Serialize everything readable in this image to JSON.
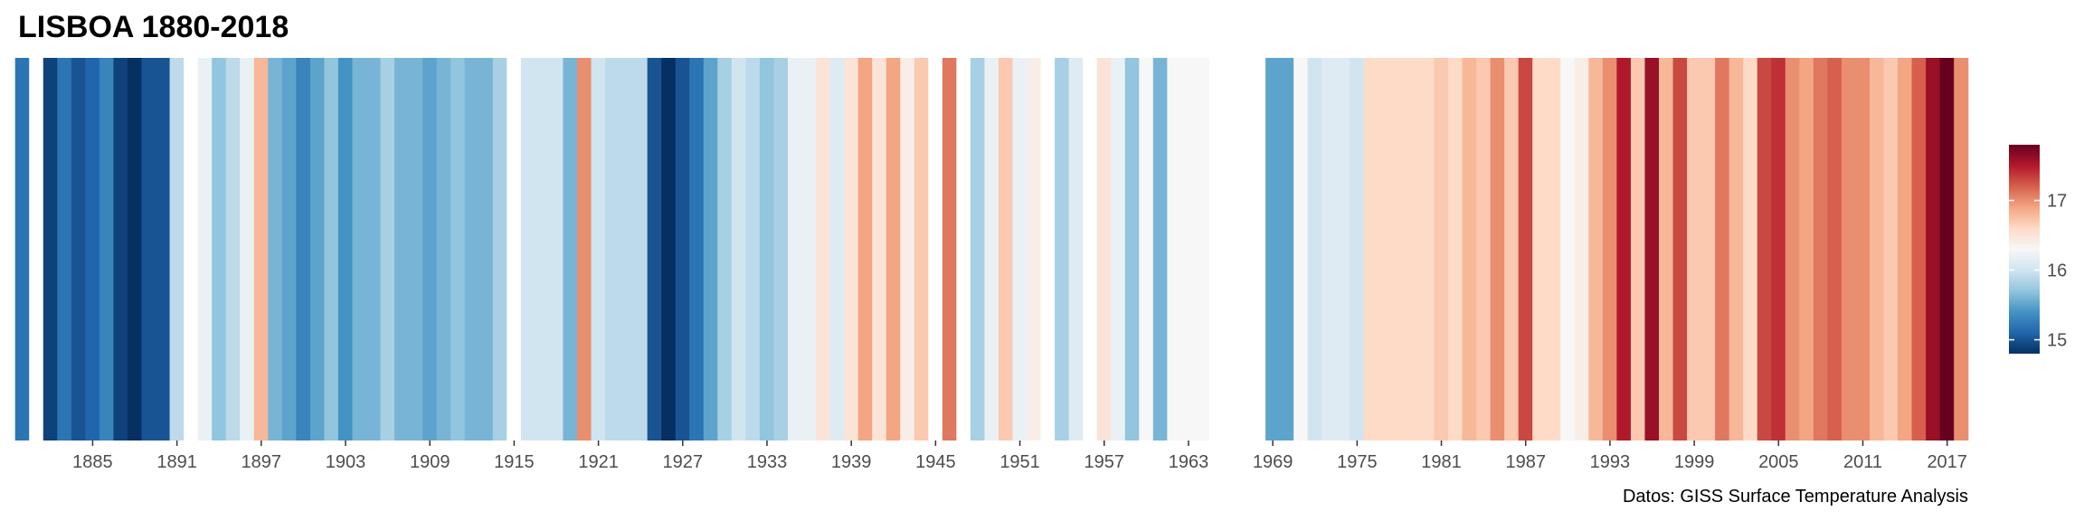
{
  "chart_data": {
    "type": "heatmap",
    "title": "LISBOA 1880-2018",
    "caption": "Datos: GISS Surface Temperature Analysis",
    "x_start_year": 1880,
    "x_end_year": 2018,
    "x_ticks": [
      1885,
      1891,
      1897,
      1903,
      1909,
      1915,
      1921,
      1927,
      1933,
      1939,
      1945,
      1951,
      1957,
      1963,
      1969,
      1975,
      1981,
      1987,
      1993,
      1999,
      2005,
      2011,
      2017
    ],
    "colorbar_ticks": [
      15,
      16,
      17
    ],
    "colorbar_range": [
      14.8,
      17.8
    ],
    "missing_color": "#808080",
    "colorscale": [
      "#053061",
      "#2166ac",
      "#4393c3",
      "#92c5de",
      "#d1e5f0",
      "#f7f7f7",
      "#fddbc7",
      "#f4a582",
      "#d6604d",
      "#b2182b",
      "#67001f"
    ],
    "years": [
      1880,
      1881,
      1882,
      1883,
      1884,
      1885,
      1886,
      1887,
      1888,
      1889,
      1890,
      1891,
      1892,
      1893,
      1894,
      1895,
      1896,
      1897,
      1898,
      1899,
      1900,
      1901,
      1902,
      1903,
      1904,
      1905,
      1906,
      1907,
      1908,
      1909,
      1910,
      1911,
      1912,
      1913,
      1914,
      1915,
      1916,
      1917,
      1918,
      1919,
      1920,
      1921,
      1922,
      1923,
      1924,
      1925,
      1926,
      1927,
      1928,
      1929,
      1930,
      1931,
      1932,
      1933,
      1934,
      1935,
      1936,
      1937,
      1938,
      1939,
      1940,
      1941,
      1942,
      1943,
      1944,
      1945,
      1946,
      1947,
      1948,
      1949,
      1950,
      1951,
      1952,
      1953,
      1954,
      1955,
      1956,
      1957,
      1958,
      1959,
      1960,
      1961,
      1962,
      1963,
      1964,
      1965,
      1966,
      1967,
      1968,
      1969,
      1970,
      1971,
      1972,
      1973,
      1974,
      1975,
      1976,
      1977,
      1978,
      1979,
      1980,
      1981,
      1982,
      1983,
      1984,
      1985,
      1986,
      1987,
      1988,
      1989,
      1990,
      1991,
      1992,
      1993,
      1994,
      1995,
      1996,
      1997,
      1998,
      1999,
      2000,
      2001,
      2002,
      2003,
      2004,
      2005,
      2006,
      2007,
      2008,
      2009,
      2010,
      2011,
      2012,
      2013,
      2014,
      2015,
      2016,
      2017,
      2018
    ],
    "values": [
      15.2,
      null,
      14.9,
      15.2,
      15.0,
      15.1,
      15.3,
      14.9,
      14.8,
      15.0,
      15.0,
      15.9,
      null,
      16.2,
      15.7,
      15.9,
      16.2,
      16.8,
      15.6,
      15.5,
      15.3,
      15.5,
      15.7,
      15.4,
      15.6,
      15.6,
      15.8,
      15.6,
      15.6,
      15.5,
      15.6,
      15.7,
      15.6,
      15.6,
      15.8,
      null,
      16.0,
      16.0,
      16.0,
      15.6,
      17.0,
      16.0,
      15.9,
      15.9,
      15.9,
      15.0,
      14.6,
      15.0,
      15.2,
      15.5,
      15.8,
      16.0,
      15.9,
      15.7,
      15.8,
      16.2,
      16.2,
      16.5,
      16.1,
      16.5,
      16.9,
      16.5,
      16.9,
      16.4,
      16.7,
      null,
      17.1,
      null,
      15.8,
      16.2,
      16.7,
      16.2,
      16.4,
      null,
      15.8,
      16.1,
      null,
      16.5,
      16.2,
      15.7,
      16.3,
      15.6,
      16.3,
      16.3,
      16.3,
      null,
      null,
      null,
      null,
      15.5,
      15.5,
      16.3,
      16.0,
      16.1,
      16.1,
      16.0,
      16.6,
      16.6,
      16.6,
      16.6,
      16.6,
      16.7,
      16.6,
      16.8,
      16.7,
      17.0,
      16.7,
      17.3,
      16.6,
      16.6,
      16.3,
      16.4,
      16.8,
      17.0,
      17.5,
      16.7,
      17.6,
      16.8,
      17.3,
      16.7,
      16.7,
      17.1,
      16.8,
      16.6,
      17.3,
      17.4,
      17.0,
      16.9,
      17.1,
      17.2,
      17.0,
      17.0,
      16.8,
      16.7,
      16.9,
      17.2,
      17.6,
      17.9,
      17.0
    ],
    "legend_position": "right",
    "grid": false
  }
}
